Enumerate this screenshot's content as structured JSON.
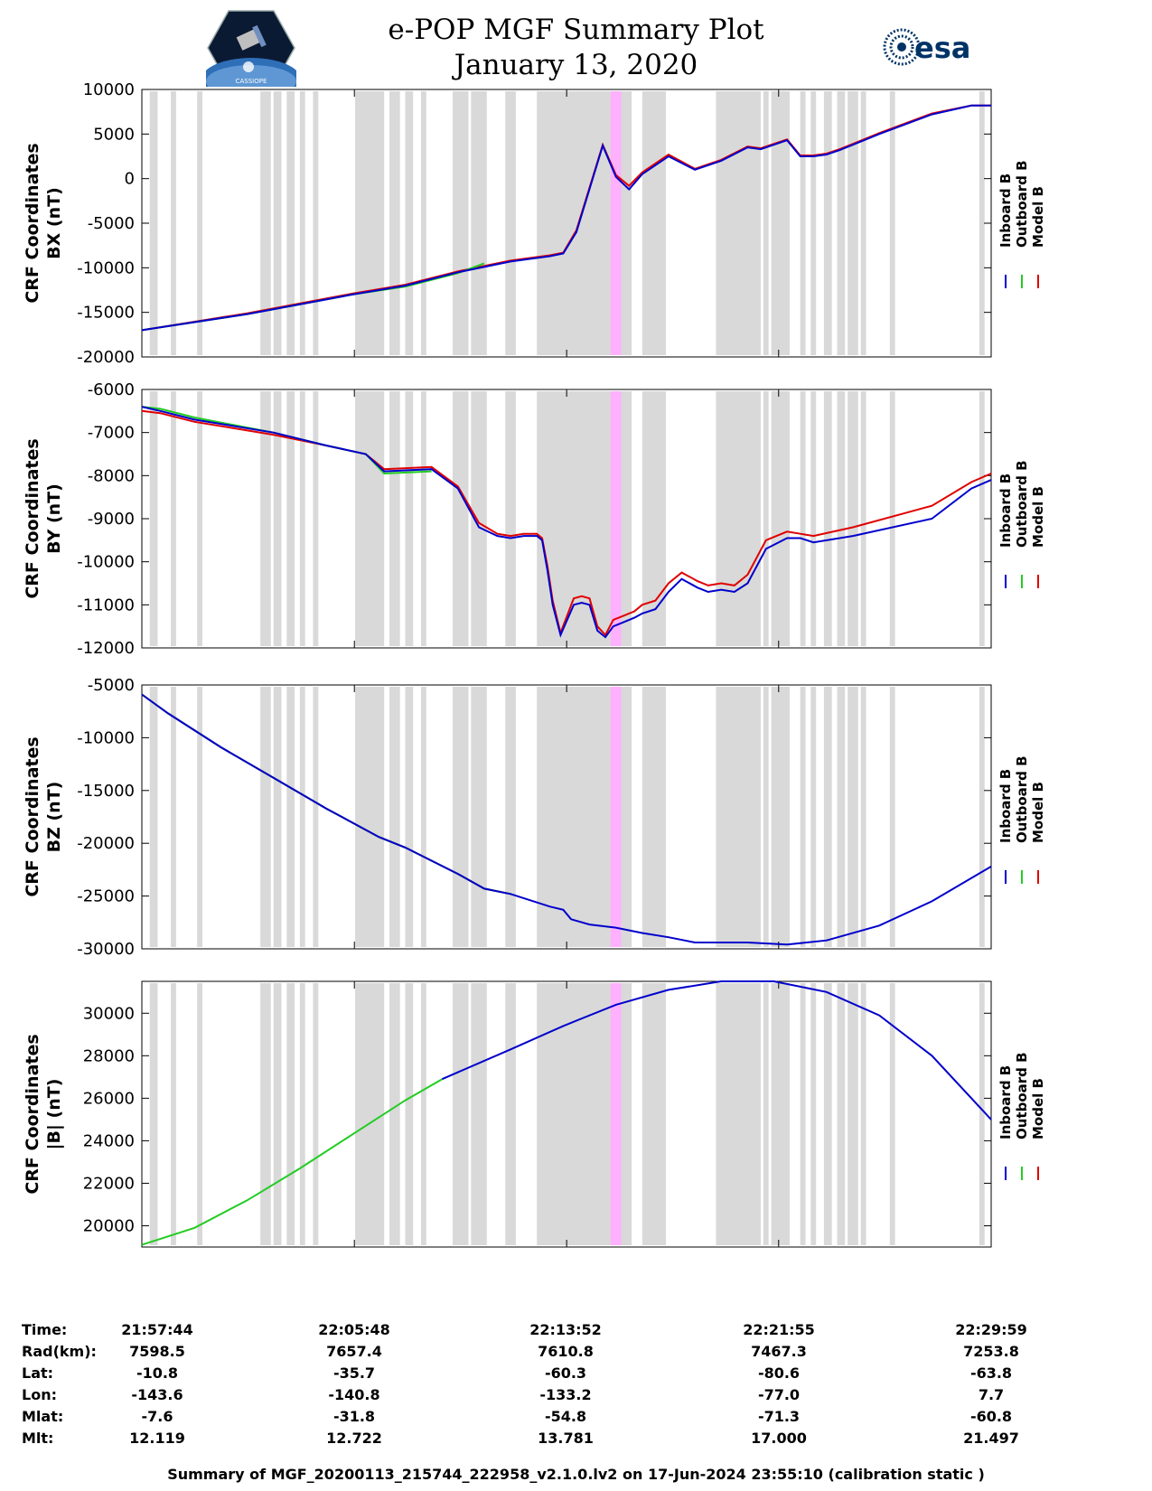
{
  "header": {
    "title": "e-POP MGF Summary Plot",
    "date": "January 13, 2020",
    "left_logo": "cassiope-mission-logo",
    "left_logo_text": "CASSIOPE",
    "right_logo": "esa-logo",
    "right_logo_text": "esa"
  },
  "colors": {
    "inboard": "#0000cc",
    "outboard": "#22cc22",
    "model": "#e00000",
    "gap_shade": "#d9d9d9",
    "event_shade": "#ffb0ff"
  },
  "legend": {
    "inboard": "Inboard B",
    "outboard": "Outboard B",
    "model": "Model B"
  },
  "chart_data": [
    {
      "type": "line",
      "ylabel_line1": "CRF Coordinates",
      "ylabel_line2": "BX (nT)",
      "ylim": [
        -20000,
        10000
      ],
      "yticks": [
        -20000,
        -15000,
        -10000,
        -5000,
        0,
        5000,
        10000
      ],
      "xlim": [
        0,
        32.25
      ],
      "series": [
        {
          "name": "Inboard B",
          "x": [
            0,
            4,
            8,
            10,
            12,
            14,
            15.5,
            16,
            16.5,
            17.5,
            18,
            18.5,
            19,
            20,
            21,
            22,
            23,
            23.5,
            24.5,
            25,
            25.5,
            26,
            26.5,
            27,
            28,
            30,
            31.5,
            32.25
          ],
          "values": [
            -17000,
            -15200,
            -13000,
            -12000,
            -10500,
            -9300,
            -8700,
            -8400,
            -6000,
            3700,
            200,
            -1200,
            500,
            2500,
            1000,
            2000,
            3500,
            3300,
            4300,
            2500,
            2500,
            2700,
            3200,
            3800,
            5000,
            7200,
            8200,
            8200
          ]
        },
        {
          "name": "Outboard B",
          "x": [
            0,
            4,
            8,
            10,
            12,
            13
          ],
          "values": [
            -17000,
            -15200,
            -13000,
            -12100,
            -10600,
            -9500
          ]
        },
        {
          "name": "Model B",
          "x": [
            0,
            4,
            8,
            10,
            12,
            14,
            15.5,
            16,
            16.5,
            17.5,
            18,
            18.5,
            19,
            20,
            21,
            22,
            23,
            23.5,
            24.5,
            25,
            25.5,
            26,
            26.5,
            27,
            28,
            30,
            31.5,
            32.25
          ],
          "values": [
            -17000,
            -15100,
            -12900,
            -11900,
            -10400,
            -9200,
            -8600,
            -8300,
            -5800,
            3800,
            400,
            -800,
            700,
            2700,
            1100,
            2100,
            3600,
            3400,
            4400,
            2600,
            2600,
            2800,
            3300,
            3900,
            5100,
            7300,
            8200,
            8200
          ]
        }
      ]
    },
    {
      "type": "line",
      "ylabel_line1": "CRF Coordinates",
      "ylabel_line2": "BY (nT)",
      "ylim": [
        -12000,
        -6000
      ],
      "yticks": [
        -12000,
        -11000,
        -10000,
        -9000,
        -8000,
        -7000,
        -6000
      ],
      "xlim": [
        0,
        32.25
      ],
      "series": [
        {
          "name": "Inboard B",
          "x": [
            0,
            0.7,
            2,
            5,
            7,
            8.5,
            9.2,
            11,
            12,
            12.8,
            13.5,
            14,
            14.5,
            15,
            15.2,
            15.4,
            15.6,
            15.9,
            16.4,
            16.7,
            17,
            17.3,
            17.6,
            17.9,
            18.3,
            18.7,
            19,
            19.5,
            20,
            20.5,
            21.1,
            21.5,
            22,
            22.5,
            23,
            23.7,
            24.5,
            25,
            25.5,
            27,
            30,
            31.5,
            32.25
          ],
          "values": [
            -6400,
            -6500,
            -6700,
            -7000,
            -7300,
            -7500,
            -7900,
            -7850,
            -8300,
            -9200,
            -9400,
            -9450,
            -9400,
            -9400,
            -9500,
            -10200,
            -11000,
            -11700,
            -11000,
            -10950,
            -11000,
            -11600,
            -11750,
            -11500,
            -11400,
            -11300,
            -11200,
            -11100,
            -10700,
            -10400,
            -10600,
            -10700,
            -10650,
            -10700,
            -10500,
            -9700,
            -9450,
            -9450,
            -9550,
            -9400,
            -9000,
            -8300,
            -8100
          ]
        },
        {
          "name": "Outboard B",
          "x": [
            0,
            0.7,
            2,
            5,
            7,
            8.5,
            9.2,
            11
          ],
          "values": [
            -6400,
            -6450,
            -6650,
            -7000,
            -7300,
            -7500,
            -7950,
            -7900
          ]
        },
        {
          "name": "Model B",
          "x": [
            0,
            0.7,
            2,
            5,
            7,
            8.5,
            9.2,
            11,
            12,
            12.8,
            13.5,
            14,
            14.5,
            15,
            15.2,
            15.4,
            15.6,
            15.9,
            16.4,
            16.7,
            17,
            17.3,
            17.6,
            17.9,
            18.3,
            18.7,
            19,
            19.5,
            20,
            20.5,
            21.1,
            21.5,
            22,
            22.5,
            23,
            23.7,
            24.5,
            25,
            25.5,
            27,
            30,
            31.5,
            32.25
          ],
          "values": [
            -6500,
            -6550,
            -6750,
            -7050,
            -7300,
            -7500,
            -7850,
            -7800,
            -8250,
            -9100,
            -9350,
            -9400,
            -9350,
            -9350,
            -9450,
            -10100,
            -10900,
            -11650,
            -10850,
            -10800,
            -10850,
            -11500,
            -11700,
            -11350,
            -11250,
            -11150,
            -11000,
            -10900,
            -10500,
            -10250,
            -10450,
            -10550,
            -10500,
            -10550,
            -10300,
            -9500,
            -9300,
            -9350,
            -9400,
            -9200,
            -8700,
            -8150,
            -7950
          ]
        }
      ]
    },
    {
      "type": "line",
      "ylabel_line1": "CRF Coordinates",
      "ylabel_line2": "BZ (nT)",
      "ylim": [
        -30000,
        -5000
      ],
      "yticks": [
        -30000,
        -25000,
        -20000,
        -15000,
        -10000,
        -5000
      ],
      "xlim": [
        0,
        32.25
      ],
      "series": [
        {
          "name": "Inboard B",
          "x": [
            0,
            1,
            3,
            5,
            7,
            9,
            10,
            12,
            13,
            14,
            15.5,
            16,
            16.3,
            17,
            18,
            19,
            20,
            21,
            22,
            23,
            24.5,
            26,
            28,
            30,
            32.25
          ],
          "values": [
            -5900,
            -7700,
            -10900,
            -13800,
            -16700,
            -19400,
            -20400,
            -22900,
            -24300,
            -24800,
            -26000,
            -26300,
            -27200,
            -27700,
            -28000,
            -28500,
            -28900,
            -29400,
            -29400,
            -29400,
            -29600,
            -29200,
            -27800,
            -25500,
            -22200
          ]
        },
        {
          "name": "Outboard B",
          "x": [
            0,
            1,
            3,
            5,
            7,
            9,
            10,
            12,
            13,
            14
          ],
          "values": [
            -5900,
            -7700,
            -10900,
            -13800,
            -16700,
            -19400,
            -20400,
            -22900,
            -24300,
            -24800
          ]
        },
        {
          "name": "Model B",
          "x": [
            0,
            1,
            3,
            5,
            7,
            9,
            10,
            12,
            13,
            14
          ],
          "values": [
            -5900,
            -7700,
            -10900,
            -13800,
            -16700,
            -19400,
            -20400,
            -22900,
            -24300,
            -24800
          ]
        }
      ]
    },
    {
      "type": "line",
      "ylabel_line1": "CRF Coordinates",
      "ylabel_line2": "|B| (nT)",
      "ylim": [
        19000,
        31500
      ],
      "yticks": [
        20000,
        22000,
        24000,
        26000,
        28000,
        30000
      ],
      "xlim": [
        0,
        32.25
      ],
      "series": [
        {
          "name": "Inboard B",
          "x": [
            11.4,
            14,
            16,
            18,
            20,
            22,
            24,
            26,
            28,
            30,
            32.25
          ],
          "values": [
            26900,
            28300,
            29400,
            30400,
            31100,
            31500,
            31500,
            31000,
            29900,
            28000,
            25000
          ]
        },
        {
          "name": "Outboard B",
          "x": [
            0,
            2,
            4,
            6,
            8,
            10,
            11.4
          ],
          "values": [
            19100,
            19900,
            21200,
            22700,
            24300,
            25900,
            26900
          ]
        },
        {
          "name": "Model B",
          "x": [],
          "values": []
        }
      ]
    }
  ],
  "xticks": {
    "values": [
      0,
      8.07,
      16.13,
      24.18,
      32.25
    ],
    "labels": [
      "21:57:44",
      "22:05:48",
      "22:13:52",
      "22:21:55",
      "22:29:59"
    ]
  },
  "gaps_minutes": [
    [
      0.3,
      0.6
    ],
    [
      1.1,
      1.3
    ],
    [
      2.1,
      2.3
    ],
    [
      4.5,
      4.9
    ],
    [
      5.0,
      5.3
    ],
    [
      5.5,
      5.8
    ],
    [
      6.0,
      6.2
    ],
    [
      6.5,
      6.7
    ],
    [
      8.1,
      9.2
    ],
    [
      9.4,
      9.8
    ],
    [
      10.0,
      10.3
    ],
    [
      10.6,
      10.8
    ],
    [
      11.8,
      12.4
    ],
    [
      12.5,
      13.1
    ],
    [
      13.8,
      14.2
    ],
    [
      15.0,
      18.6
    ],
    [
      19.0,
      19.9
    ],
    [
      21.8,
      23.5
    ],
    [
      23.6,
      23.8
    ],
    [
      23.9,
      24.6
    ],
    [
      25.0,
      25.2
    ],
    [
      25.4,
      25.6
    ],
    [
      25.9,
      26.2
    ],
    [
      26.4,
      26.7
    ],
    [
      26.8,
      27.2
    ],
    [
      27.3,
      27.5
    ],
    [
      28.4,
      28.6
    ],
    [
      31.8,
      32.0
    ]
  ],
  "event_minutes": [
    17.8,
    18.2
  ],
  "info_table": {
    "rows": [
      {
        "label": "Time:",
        "values": [
          "21:57:44",
          "22:05:48",
          "22:13:52",
          "22:21:55",
          "22:29:59"
        ]
      },
      {
        "label": "Rad(km):",
        "values": [
          "7598.5",
          "7657.4",
          "7610.8",
          "7467.3",
          "7253.8"
        ]
      },
      {
        "label": "Lat:",
        "values": [
          "-10.8",
          "-35.7",
          "-60.3",
          "-80.6",
          "-63.8"
        ]
      },
      {
        "label": "Lon:",
        "values": [
          "-143.6",
          "-140.8",
          "-133.2",
          "-77.0",
          "7.7"
        ]
      },
      {
        "label": "Mlat:",
        "values": [
          "-7.6",
          "-31.8",
          "-54.8",
          "-71.3",
          "-60.8"
        ]
      },
      {
        "label": "Mlt:",
        "values": [
          "12.119",
          "12.722",
          "13.781",
          "17.000",
          "21.497"
        ]
      }
    ]
  },
  "footer": "Summary of MGF_20200113_215744_222958_v2.1.0.lv2 on 17-Jun-2024 23:55:10 (calibration static )"
}
